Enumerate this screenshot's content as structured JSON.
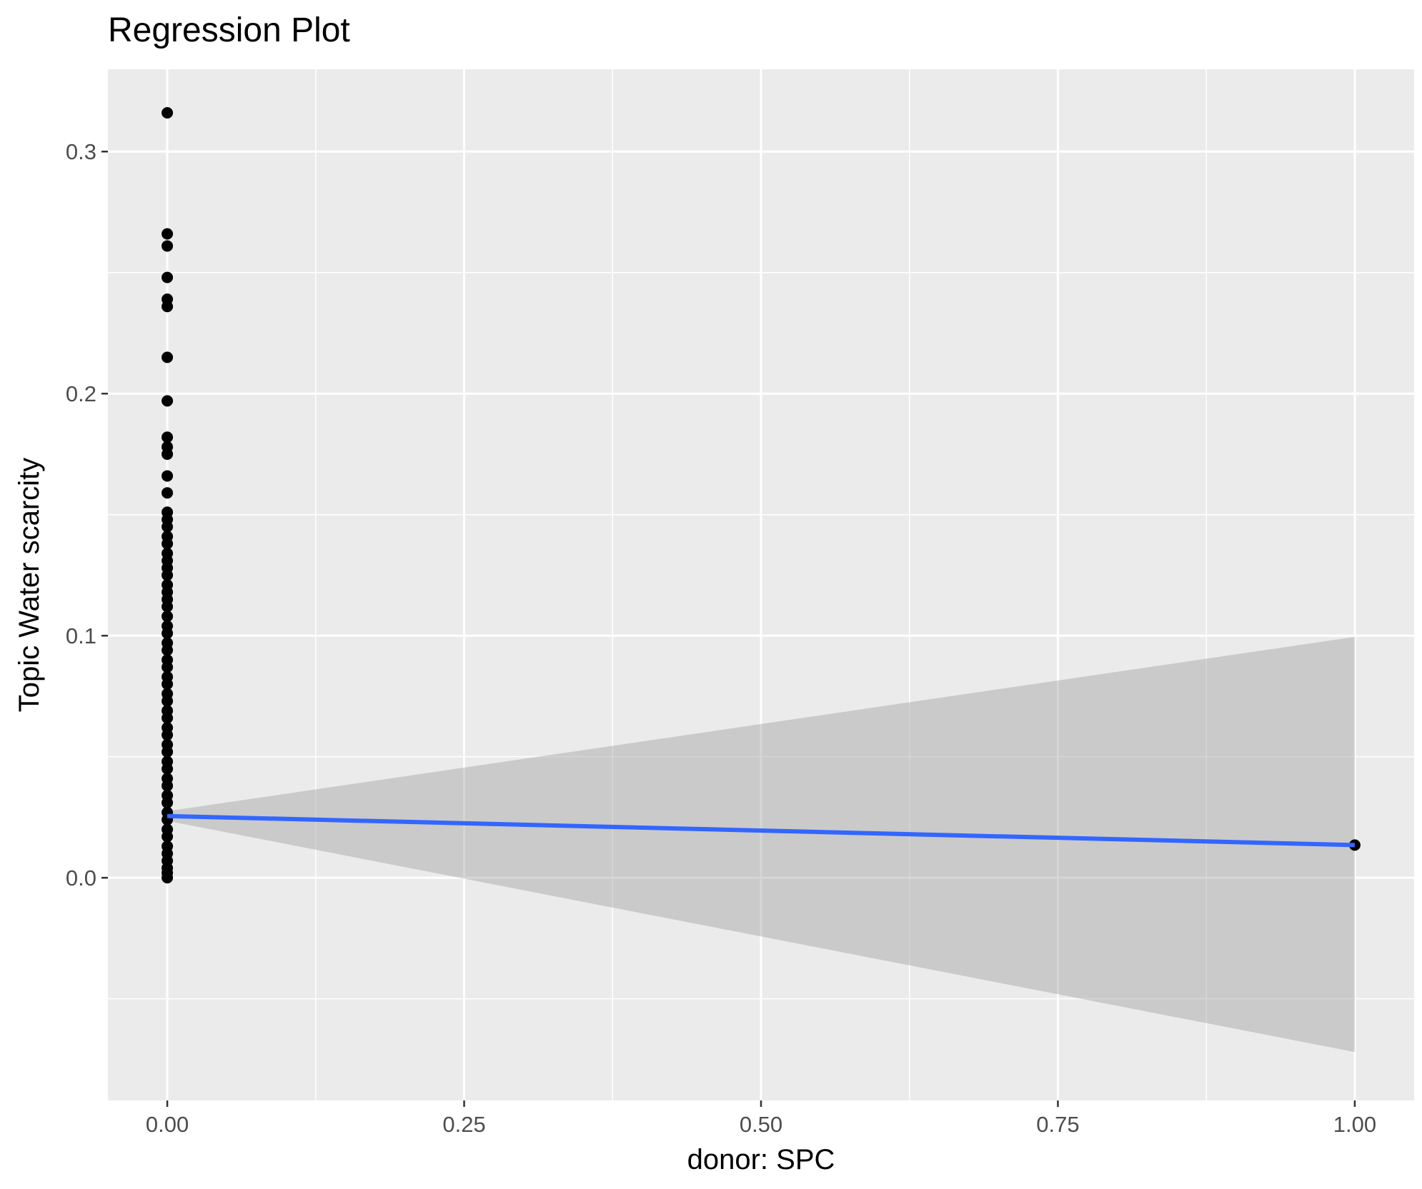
{
  "chart_data": {
    "type": "scatter",
    "title": "Regression Plot",
    "xlabel": "donor: SPC",
    "ylabel": "Topic Water scarcity",
    "xlim": [
      -0.05,
      1.05
    ],
    "ylim": [
      -0.092,
      0.334
    ],
    "x_ticks": [
      {
        "value": 0,
        "label": "0.00"
      },
      {
        "value": 0.25,
        "label": "0.25"
      },
      {
        "value": 0.5,
        "label": "0.50"
      },
      {
        "value": 0.75,
        "label": "0.75"
      },
      {
        "value": 1,
        "label": "1.00"
      }
    ],
    "y_ticks": [
      {
        "value": 0,
        "label": "0.0"
      },
      {
        "value": 0.1,
        "label": "0.1"
      },
      {
        "value": 0.2,
        "label": "0.2"
      },
      {
        "value": 0.3,
        "label": "0.3"
      }
    ],
    "grid": true,
    "point_color": "#000000",
    "points": [
      {
        "x": 0,
        "y": 0.316
      },
      {
        "x": 0,
        "y": 0.266
      },
      {
        "x": 0,
        "y": 0.261
      },
      {
        "x": 0,
        "y": 0.248
      },
      {
        "x": 0,
        "y": 0.239
      },
      {
        "x": 0,
        "y": 0.236
      },
      {
        "x": 0,
        "y": 0.215
      },
      {
        "x": 0,
        "y": 0.197
      },
      {
        "x": 0,
        "y": 0.182
      },
      {
        "x": 0,
        "y": 0.178
      },
      {
        "x": 0,
        "y": 0.175
      },
      {
        "x": 0,
        "y": 0.166
      },
      {
        "x": 0,
        "y": 0.159
      },
      {
        "x": 0,
        "y": 0.151
      },
      {
        "x": 0,
        "y": 0.148
      },
      {
        "x": 0,
        "y": 0.145
      },
      {
        "x": 0,
        "y": 0.141
      },
      {
        "x": 0,
        "y": 0.138
      },
      {
        "x": 0,
        "y": 0.134
      },
      {
        "x": 0,
        "y": 0.131
      },
      {
        "x": 0,
        "y": 0.128
      },
      {
        "x": 0,
        "y": 0.125
      },
      {
        "x": 0,
        "y": 0.121
      },
      {
        "x": 0,
        "y": 0.118
      },
      {
        "x": 0,
        "y": 0.115
      },
      {
        "x": 0,
        "y": 0.112
      },
      {
        "x": 0,
        "y": 0.108
      },
      {
        "x": 0,
        "y": 0.104
      },
      {
        "x": 0,
        "y": 0.101
      },
      {
        "x": 0,
        "y": 0.097
      },
      {
        "x": 0,
        "y": 0.094
      },
      {
        "x": 0,
        "y": 0.09
      },
      {
        "x": 0,
        "y": 0.087
      },
      {
        "x": 0,
        "y": 0.083
      },
      {
        "x": 0,
        "y": 0.08
      },
      {
        "x": 0,
        "y": 0.076
      },
      {
        "x": 0,
        "y": 0.073
      },
      {
        "x": 0,
        "y": 0.069
      },
      {
        "x": 0,
        "y": 0.066
      },
      {
        "x": 0,
        "y": 0.062
      },
      {
        "x": 0,
        "y": 0.059
      },
      {
        "x": 0,
        "y": 0.055
      },
      {
        "x": 0,
        "y": 0.052
      },
      {
        "x": 0,
        "y": 0.048
      },
      {
        "x": 0,
        "y": 0.045
      },
      {
        "x": 0,
        "y": 0.041
      },
      {
        "x": 0,
        "y": 0.038
      },
      {
        "x": 0,
        "y": 0.034
      },
      {
        "x": 0,
        "y": 0.031
      },
      {
        "x": 0,
        "y": 0.027
      },
      {
        "x": 0,
        "y": 0.024
      },
      {
        "x": 0,
        "y": 0.02
      },
      {
        "x": 0,
        "y": 0.017
      },
      {
        "x": 0,
        "y": 0.013
      },
      {
        "x": 0,
        "y": 0.01
      },
      {
        "x": 0,
        "y": 0.007
      },
      {
        "x": 0,
        "y": 0.004
      },
      {
        "x": 0,
        "y": 0.002
      },
      {
        "x": 0,
        "y": 0.0
      },
      {
        "x": 1,
        "y": 0.0135
      }
    ],
    "regression": {
      "color": "#3366FF",
      "x": [
        0,
        1
      ],
      "y": [
        0.0255,
        0.0135
      ],
      "ci_color": "#999999",
      "ci_lower": [
        0.0235,
        -0.072
      ],
      "ci_upper": [
        0.0275,
        0.0995
      ]
    }
  }
}
